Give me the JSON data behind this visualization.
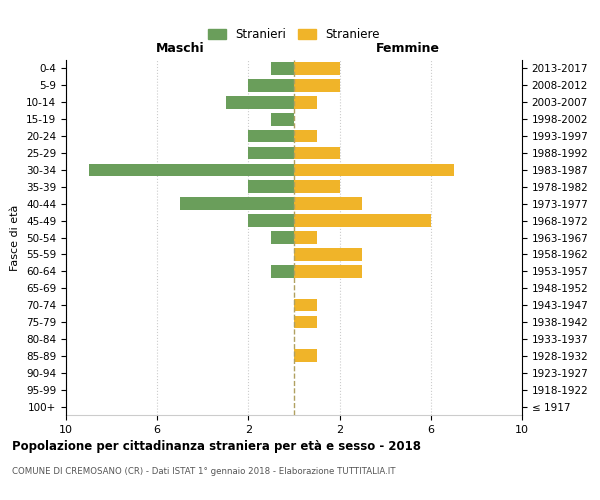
{
  "age_groups": [
    "100+",
    "95-99",
    "90-94",
    "85-89",
    "80-84",
    "75-79",
    "70-74",
    "65-69",
    "60-64",
    "55-59",
    "50-54",
    "45-49",
    "40-44",
    "35-39",
    "30-34",
    "25-29",
    "20-24",
    "15-19",
    "10-14",
    "5-9",
    "0-4"
  ],
  "birth_years": [
    "≤ 1917",
    "1918-1922",
    "1923-1927",
    "1928-1932",
    "1933-1937",
    "1938-1942",
    "1943-1947",
    "1948-1952",
    "1953-1957",
    "1958-1962",
    "1963-1967",
    "1968-1972",
    "1973-1977",
    "1978-1982",
    "1983-1987",
    "1988-1992",
    "1993-1997",
    "1998-2002",
    "2003-2007",
    "2008-2012",
    "2013-2017"
  ],
  "maschi": [
    0,
    0,
    0,
    0,
    0,
    0,
    0,
    0,
    1,
    0,
    1,
    2,
    5,
    2,
    9,
    2,
    2,
    1,
    3,
    2,
    1
  ],
  "femmine": [
    0,
    0,
    0,
    1,
    0,
    1,
    1,
    0,
    3,
    3,
    1,
    6,
    3,
    2,
    7,
    2,
    1,
    0,
    1,
    2,
    2
  ],
  "maschi_color": "#6a9e5b",
  "femmine_color": "#f0b429",
  "title": "Popolazione per cittadinanza straniera per età e sesso - 2018",
  "subtitle": "COMUNE DI CREMOSANO (CR) - Dati ISTAT 1° gennaio 2018 - Elaborazione TUTTITALIA.IT",
  "xlabel_left": "Maschi",
  "xlabel_right": "Femmine",
  "ylabel": "Fasce di età",
  "legend_stranieri": "Stranieri",
  "legend_straniere": "Straniere",
  "background_color": "#ffffff",
  "grid_color": "#cccccc",
  "dashed_color": "#b0a060"
}
